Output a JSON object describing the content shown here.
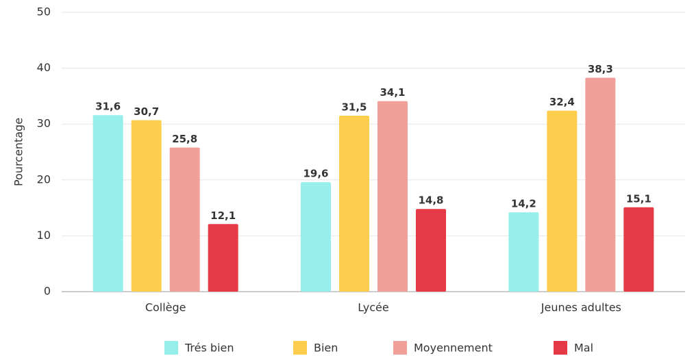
{
  "chart_data": {
    "type": "bar",
    "y_label": "Pourcentage",
    "categories": [
      "Collège",
      "Lycée",
      "Jeunes adultes"
    ],
    "series": [
      {
        "name": "Trés bien",
        "color": "#97efeb",
        "values": [
          31.6,
          19.6,
          14.2
        ],
        "value_labels": [
          "31,6",
          "19,6",
          "14,2"
        ]
      },
      {
        "name": "Bien",
        "color": "#fdce4e",
        "values": [
          30.7,
          31.5,
          32.4
        ],
        "value_labels": [
          "30,7",
          "31,5",
          "32,4"
        ]
      },
      {
        "name": "Moyennement",
        "color": "#f0a099",
        "values": [
          25.8,
          34.1,
          38.3
        ],
        "value_labels": [
          "25,8",
          "34,1",
          "38,3"
        ]
      },
      {
        "name": "Mal",
        "color": "#e63946",
        "values": [
          12.1,
          14.8,
          15.1
        ],
        "value_labels": [
          "12,1",
          "14,8",
          "15,1"
        ]
      }
    ],
    "ylim": [
      0,
      50
    ],
    "yticks": [
      0,
      10,
      20,
      30,
      40,
      50
    ],
    "grid": true,
    "legend": "bottom"
  }
}
